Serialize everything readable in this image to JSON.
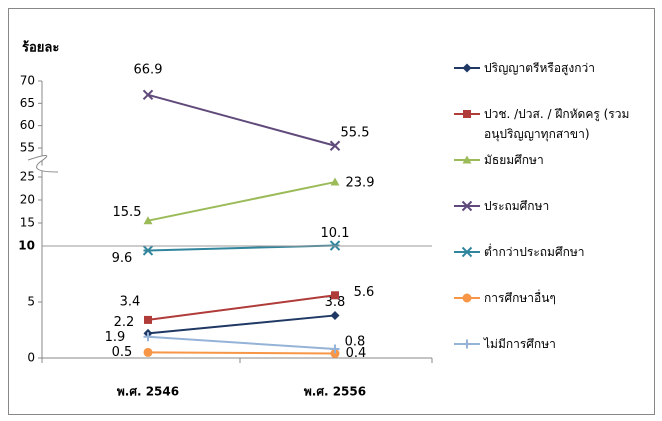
{
  "chart_data": {
    "type": "line",
    "ylabel": "ร้อยละ",
    "categories": [
      "พ.ศ. 2546",
      "พ.ศ. 2556"
    ],
    "ylim_segments": [
      [
        0,
        10
      ],
      [
        10,
        25
      ],
      [
        55,
        70
      ]
    ],
    "yticks": [
      0,
      5,
      10,
      15,
      20,
      25,
      55,
      60,
      65,
      70
    ],
    "series": [
      {
        "name": "ปริญญาตรีหรือสูงกว่า",
        "color": "#1f3864",
        "marker": "diamond",
        "values": [
          2.2,
          3.8
        ]
      },
      {
        "name": "ปวช. /ปวส. / ฝึกหัดครู (รวมอนุปริญญาทุกสาขา)",
        "color": "#b03c3a",
        "marker": "square",
        "values": [
          3.4,
          5.6
        ]
      },
      {
        "name": "มัธยมศึกษา",
        "color": "#9bbb59",
        "marker": "triangle",
        "values": [
          15.5,
          23.9
        ]
      },
      {
        "name": "ประถมศึกษา",
        "color": "#604a7b",
        "marker": "x",
        "values": [
          66.9,
          55.5
        ]
      },
      {
        "name": "ต่ำกว่าประถมศึกษา",
        "color": "#31859c",
        "marker": "asterisk",
        "values": [
          9.6,
          10.1
        ]
      },
      {
        "name": "การศึกษาอื่นๆ",
        "color": "#f79646",
        "marker": "circle",
        "values": [
          0.5,
          0.4
        ]
      },
      {
        "name": "ไม่มีการศึกษา",
        "color": "#95b3d7",
        "marker": "plus",
        "values": [
          1.9,
          0.8
        ]
      }
    ],
    "legend": "right"
  }
}
